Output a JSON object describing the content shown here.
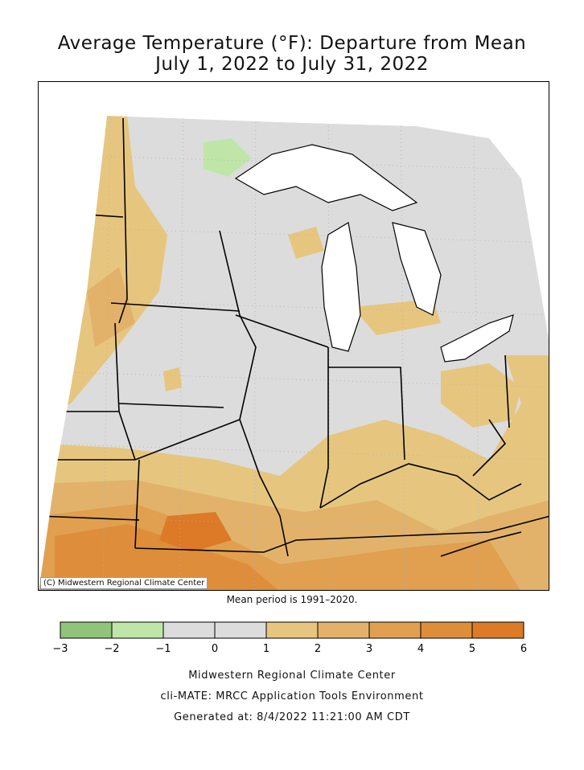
{
  "title": {
    "line1": "Average Temperature (°F): Departure from Mean",
    "line2": "July 1, 2022 to July 31, 2022"
  },
  "map": {
    "copyright": "(C) Midwestern Regional Climate Center",
    "mean_period": "Mean period is 1991–2020."
  },
  "legend": {
    "bins": [
      {
        "from": -3,
        "to": -2,
        "color": "#8fc47a"
      },
      {
        "from": -2,
        "to": -1,
        "color": "#bfe6a8"
      },
      {
        "from": -1,
        "to": 0,
        "color": "#dcdcdc"
      },
      {
        "from": 0,
        "to": 1,
        "color": "#dcdcdc"
      },
      {
        "from": 1,
        "to": 2,
        "color": "#e6c67e"
      },
      {
        "from": 2,
        "to": 3,
        "color": "#e2b26a"
      },
      {
        "from": 3,
        "to": 4,
        "color": "#e0a050"
      },
      {
        "from": 4,
        "to": 5,
        "color": "#de8e3a"
      },
      {
        "from": 5,
        "to": 6,
        "color": "#dc7a28"
      }
    ],
    "tick_labels": [
      "−3",
      "−2",
      "−1",
      "0",
      "1",
      "2",
      "3",
      "4",
      "5",
      "6"
    ]
  },
  "footer": {
    "line1": "Midwestern Regional Climate Center",
    "line2": "cli-MATE: MRCC Application Tools Environment",
    "line3": "Generated at: 8/4/2022 11:21:00 AM CDT"
  }
}
